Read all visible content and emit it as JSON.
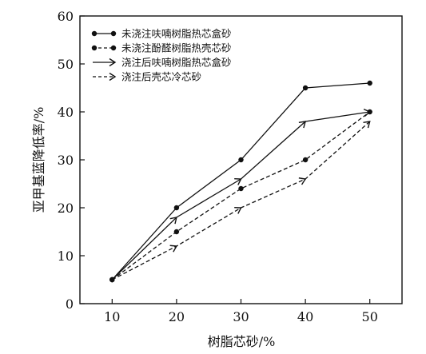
{
  "chart_data": {
    "type": "line",
    "title": "",
    "xlabel": "树脂芯砂/%",
    "ylabel": "亚甲基蓝降低率/%",
    "xlim": [
      5,
      55
    ],
    "ylim": [
      0,
      60
    ],
    "x": [
      10,
      20,
      30,
      40,
      50
    ],
    "xticks": [
      10,
      20,
      30,
      40,
      50
    ],
    "yticks": [
      0,
      10,
      20,
      30,
      40,
      50,
      60
    ],
    "grid": false,
    "legend_position": "top-left",
    "series": [
      {
        "name": "未浇注呋喃树脂热芯盒砂",
        "values": [
          5,
          20,
          30,
          45,
          46
        ],
        "line_style": "solid",
        "marker": "circle"
      },
      {
        "name": "未浇注酚醛树脂热壳芯砂",
        "values": [
          5,
          15,
          24,
          30,
          40
        ],
        "line_style": "dashed",
        "marker": "circle"
      },
      {
        "name": "浇注后呋喃树脂热芯盒砂",
        "values": [
          5,
          18,
          26,
          38,
          40
        ],
        "line_style": "solid",
        "marker": "arrow"
      },
      {
        "name": "浇注后壳芯冷芯砂",
        "values": [
          5,
          12,
          20,
          26,
          38
        ],
        "line_style": "dashed",
        "marker": "arrow"
      }
    ]
  }
}
